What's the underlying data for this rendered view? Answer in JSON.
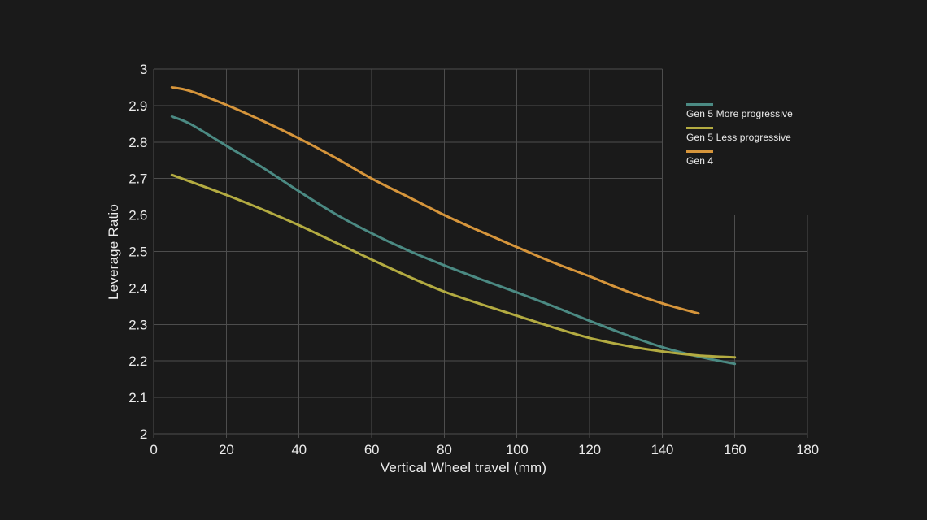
{
  "chart": {
    "background": "#1a1a1a",
    "grid_color": "#4d4d4d",
    "text_color": "#ebebeb",
    "y_title": "Leverage Ratio",
    "x_title": "Vertical Wheel travel (mm)",
    "x_tick_labels": [
      "0",
      "20",
      "40",
      "60",
      "80",
      "100",
      "120",
      "140",
      "160",
      "180"
    ],
    "y_tick_labels": [
      "3",
      "2.9",
      "2.8",
      "2.7",
      "2.6",
      "2.5",
      "2.4",
      "2.3",
      "2.2",
      "2.1",
      "2"
    ]
  },
  "chart_data": {
    "type": "line",
    "title": "",
    "xlabel": "Vertical Wheel travel (mm)",
    "ylabel": "Leverage Ratio",
    "xlim": [
      0,
      180
    ],
    "ylim": [
      2,
      3
    ],
    "x_tick_step": 20,
    "y_tick_step": 0.1,
    "grid": true,
    "grid_cutout": "no gridlines in region x>140mm and y>2.6 (legend occupies this corner)",
    "legend_position": "right",
    "series": [
      {
        "name": "Gen 5 More progressive",
        "color": "#4b8a83",
        "x": [
          5,
          10,
          20,
          30,
          40,
          50,
          60,
          70,
          80,
          90,
          100,
          110,
          120,
          130,
          140,
          150,
          160
        ],
        "y": [
          2.87,
          2.85,
          2.79,
          2.73,
          2.665,
          2.603,
          2.55,
          2.503,
          2.462,
          2.424,
          2.388,
          2.35,
          2.31,
          2.272,
          2.238,
          2.212,
          2.192
        ]
      },
      {
        "name": "Gen 5 Less progressive",
        "color": "#b3ab41",
        "x": [
          5,
          10,
          20,
          30,
          40,
          50,
          60,
          70,
          80,
          90,
          100,
          110,
          120,
          130,
          140,
          150,
          160
        ],
        "y": [
          2.71,
          2.692,
          2.655,
          2.615,
          2.572,
          2.525,
          2.478,
          2.432,
          2.39,
          2.356,
          2.324,
          2.292,
          2.263,
          2.242,
          2.226,
          2.215,
          2.21
        ]
      },
      {
        "name": "Gen 4",
        "color": "#d6953b",
        "x": [
          5,
          10,
          20,
          30,
          40,
          50,
          60,
          70,
          80,
          90,
          100,
          110,
          120,
          130,
          140,
          150
        ],
        "y": [
          2.95,
          2.94,
          2.902,
          2.858,
          2.81,
          2.757,
          2.7,
          2.65,
          2.6,
          2.555,
          2.512,
          2.47,
          2.432,
          2.392,
          2.358,
          2.33
        ]
      }
    ]
  }
}
